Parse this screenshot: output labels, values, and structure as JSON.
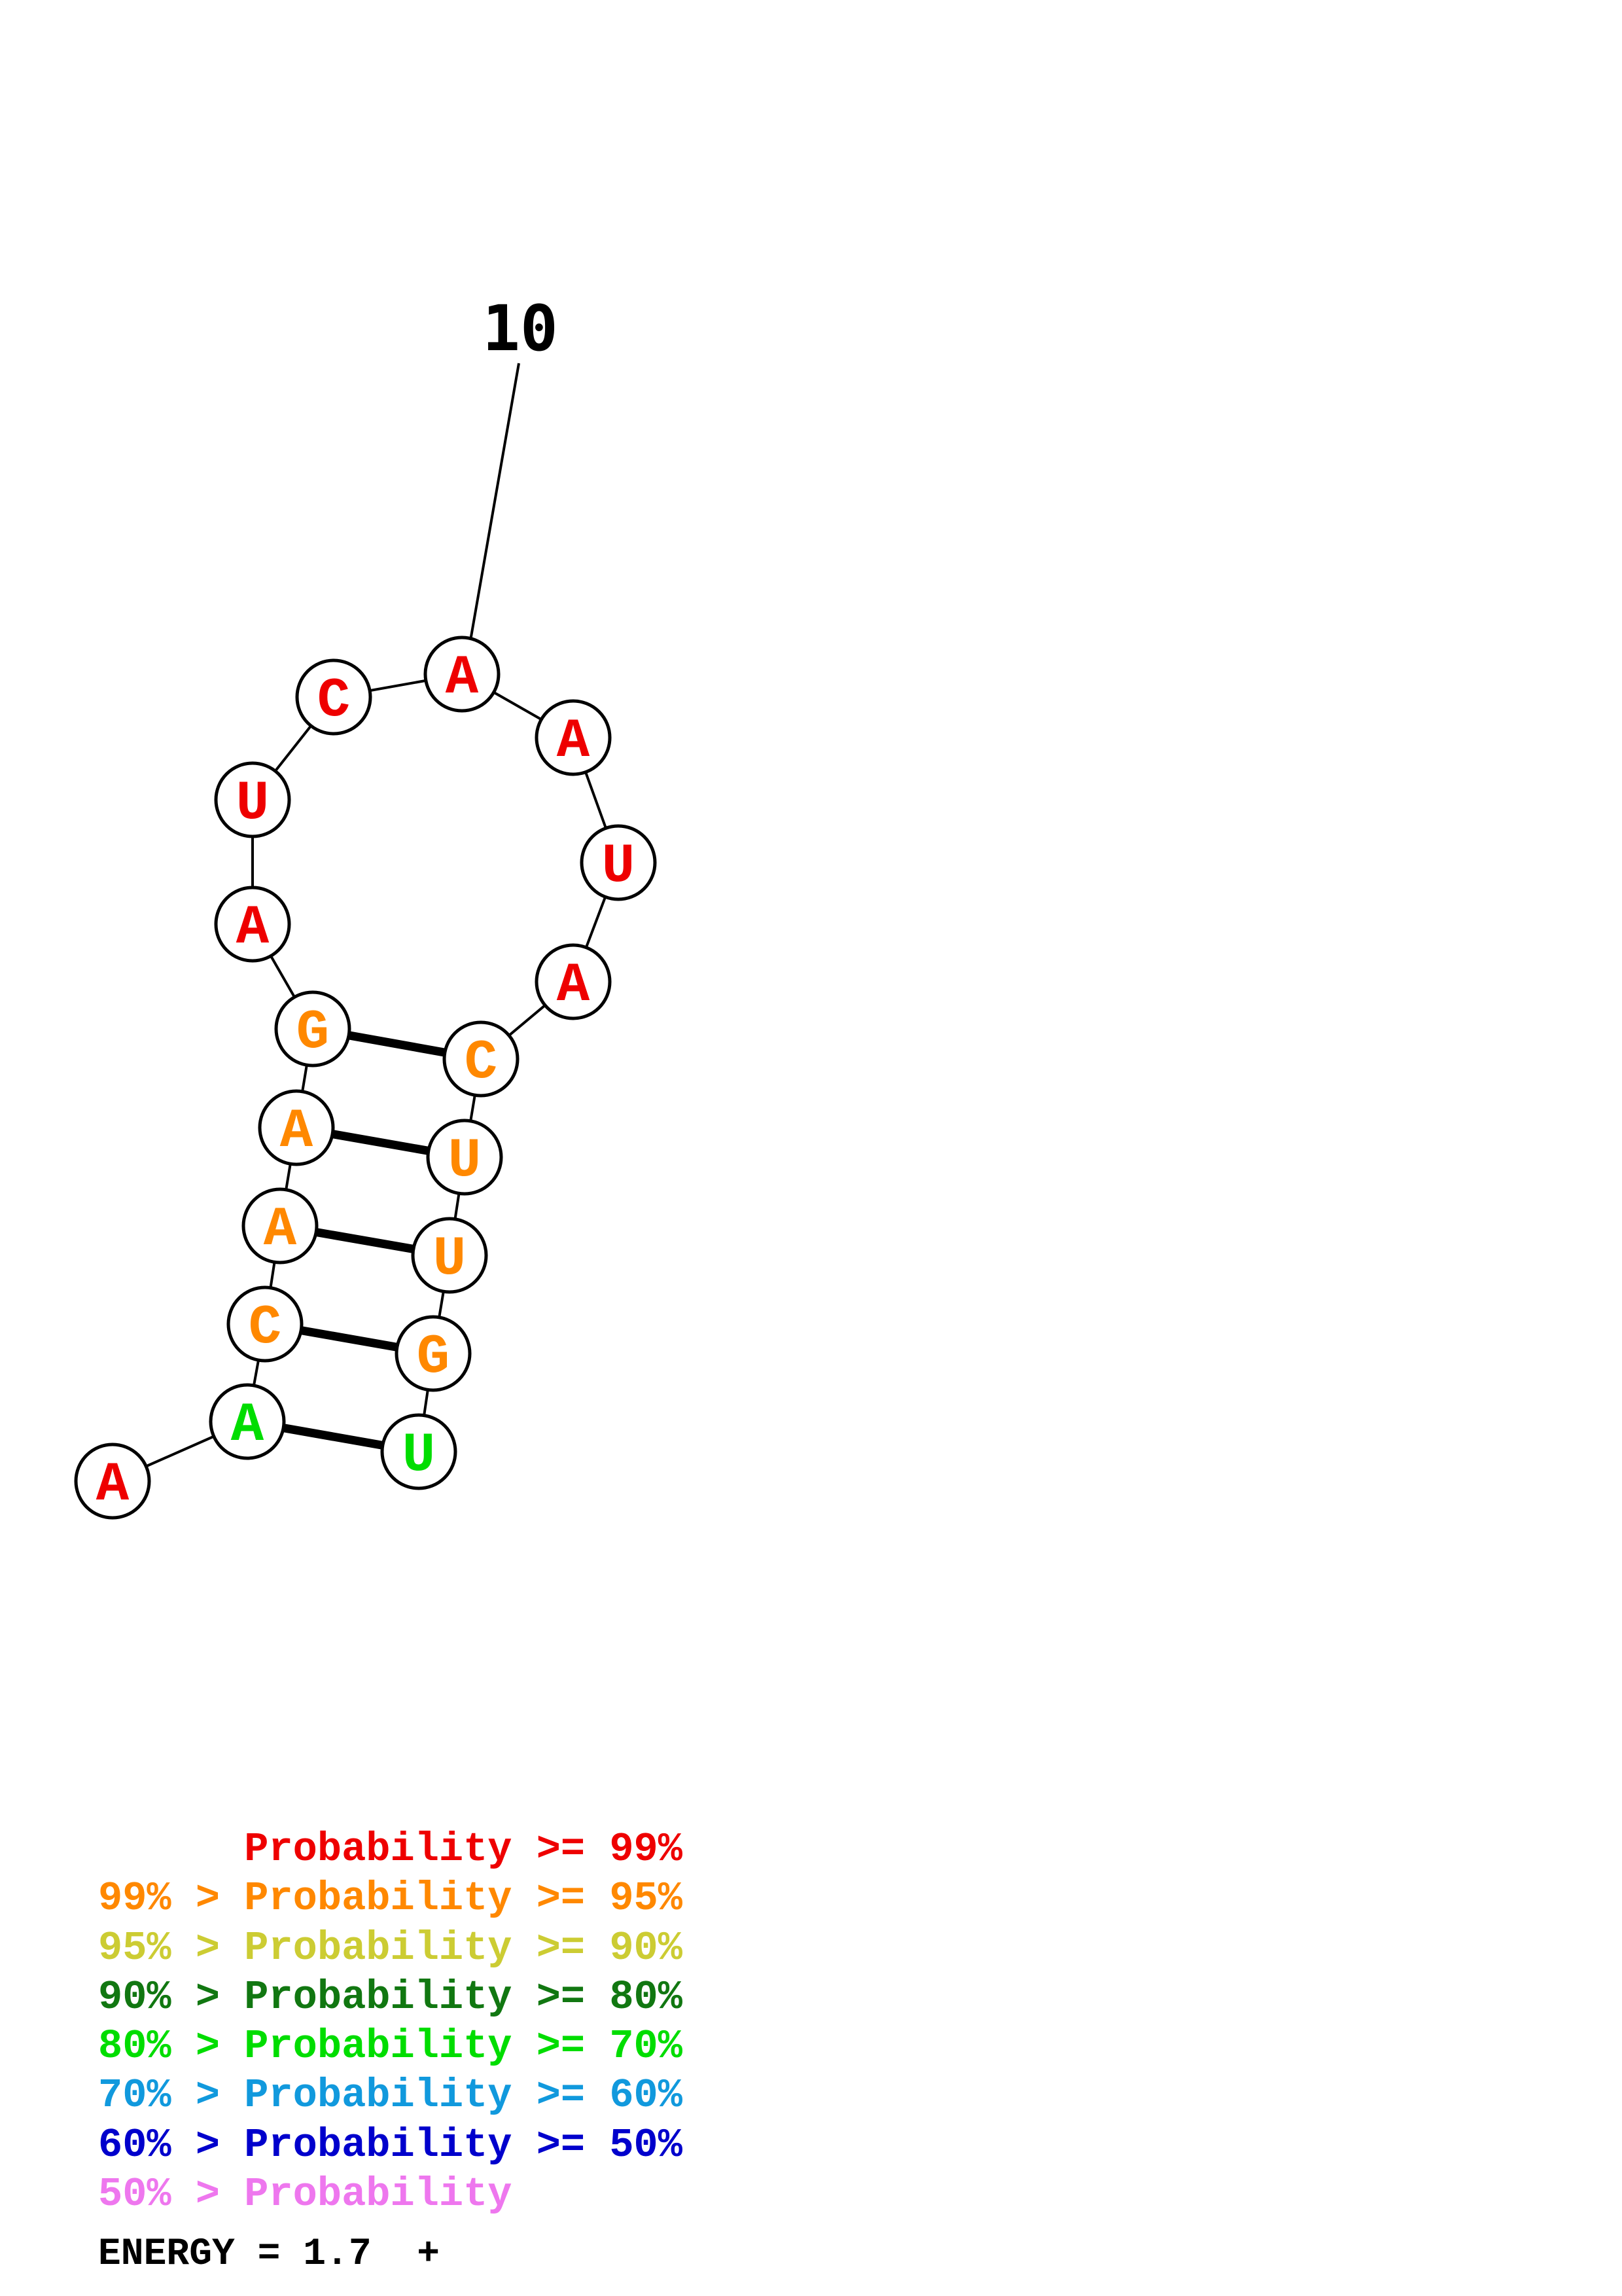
{
  "tick_label": "10",
  "nucleotides": [
    {
      "base": "A",
      "color": "#ee0000"
    },
    {
      "base": "A",
      "color": "#00dd00"
    },
    {
      "base": "C",
      "color": "#ff8800"
    },
    {
      "base": "A",
      "color": "#ff8800"
    },
    {
      "base": "A",
      "color": "#ff8800"
    },
    {
      "base": "G",
      "color": "#ff8800"
    },
    {
      "base": "A",
      "color": "#ee0000"
    },
    {
      "base": "U",
      "color": "#ee0000"
    },
    {
      "base": "C",
      "color": "#ee0000"
    },
    {
      "base": "A",
      "color": "#ee0000"
    },
    {
      "base": "A",
      "color": "#ee0000"
    },
    {
      "base": "U",
      "color": "#ee0000"
    },
    {
      "base": "A",
      "color": "#ee0000"
    },
    {
      "base": "C",
      "color": "#ff8800"
    },
    {
      "base": "U",
      "color": "#ff8800"
    },
    {
      "base": "U",
      "color": "#ff8800"
    },
    {
      "base": "G",
      "color": "#ff8800"
    },
    {
      "base": "U",
      "color": "#00dd00"
    }
  ],
  "pairs": [
    [
      2,
      18
    ],
    [
      3,
      17
    ],
    [
      4,
      16
    ],
    [
      5,
      15
    ],
    [
      6,
      14
    ]
  ],
  "legend": [
    {
      "prefix": "    ",
      "text": "Probability >= 99%",
      "color": "#ee0000"
    },
    {
      "prefix": "99% > ",
      "text": "Probability >= 95%",
      "color": "#ff8800"
    },
    {
      "prefix": "95% > ",
      "text": "Probability >= 90%",
      "color": "#cccc33"
    },
    {
      "prefix": "90% > ",
      "text": "Probability >= 80%",
      "color": "#117711"
    },
    {
      "prefix": "80% > ",
      "text": "Probability >= 70%",
      "color": "#00dd00"
    },
    {
      "prefix": "70% > ",
      "text": "Probability >= 60%",
      "color": "#1199dd"
    },
    {
      "prefix": "60% > ",
      "text": "Probability >= 50%",
      "color": "#0000cc"
    },
    {
      "prefix": "50% > ",
      "text": "Probability",
      "color": "#ee77ee"
    }
  ],
  "energy": "ENERGY = 1.7  +"
}
